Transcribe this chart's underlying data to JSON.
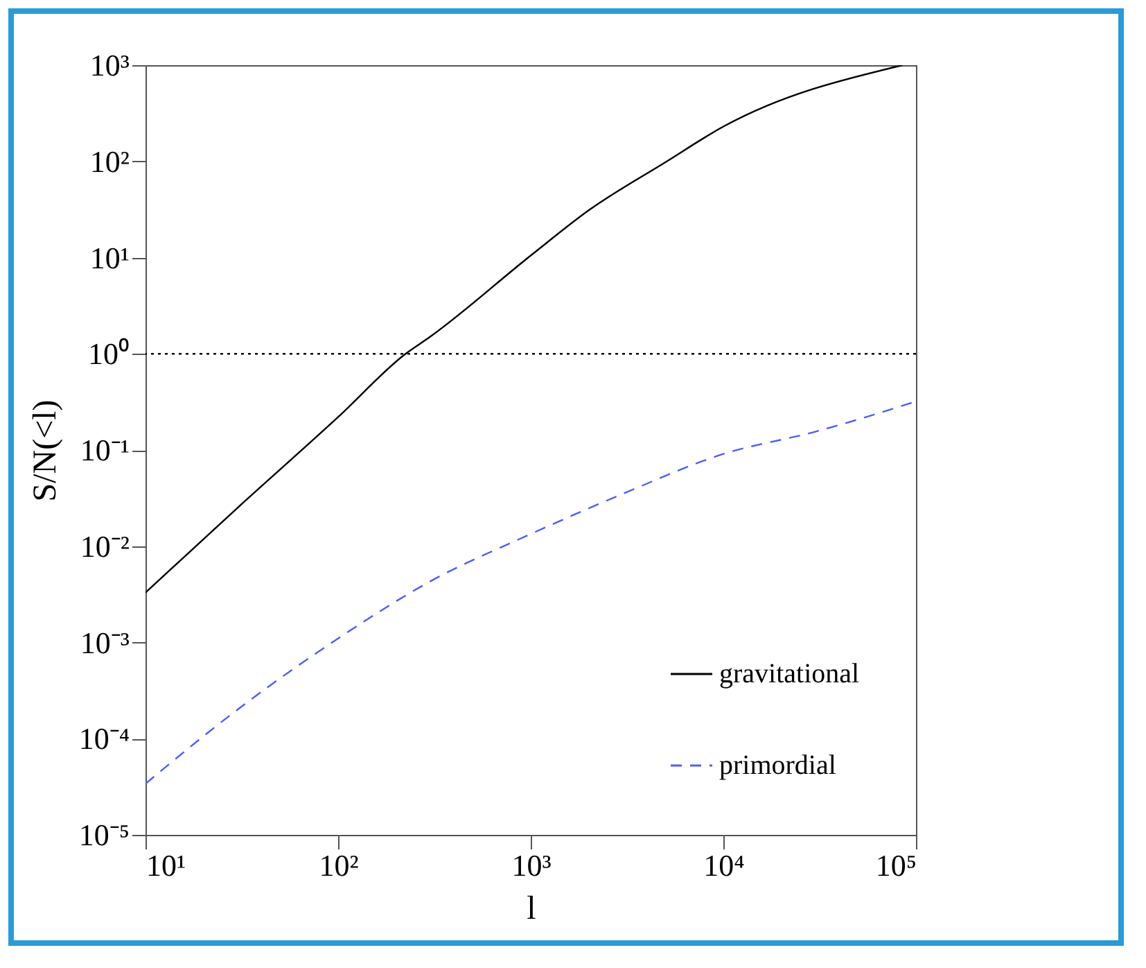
{
  "chart_data": {
    "type": "line",
    "xlabel": "l",
    "ylabel": "S/N(<l)",
    "log": "xy",
    "grid": false,
    "legend": "bottom right",
    "marker": "none",
    "xlim": [
      10,
      100000
    ],
    "ylim": [
      1e-05,
      1000
    ],
    "xticks": [
      {
        "value": 10,
        "label": "10¹"
      },
      {
        "value": 100,
        "label": "10²"
      },
      {
        "value": 1000,
        "label": "10³"
      },
      {
        "value": 10000,
        "label": "10⁴"
      },
      {
        "value": 100000,
        "label": "10⁵"
      }
    ],
    "yticks": [
      {
        "value": 1e-05,
        "label": "10⁻⁵"
      },
      {
        "value": 0.0001,
        "label": "10⁻⁴"
      },
      {
        "value": 0.001,
        "label": "10⁻³"
      },
      {
        "value": 0.01,
        "label": "10⁻²"
      },
      {
        "value": 0.1,
        "label": "10⁻¹"
      },
      {
        "value": 1,
        "label": "10⁰"
      },
      {
        "value": 10,
        "label": "10¹"
      },
      {
        "value": 100,
        "label": "10²"
      },
      {
        "value": 1000,
        "label": "10³"
      }
    ],
    "ref_lines": [
      {
        "axis": "y",
        "value": 1,
        "line_style": "dotted",
        "color": "#000000"
      }
    ],
    "series": [
      {
        "name": "gravitational",
        "color": "#000000",
        "line_style": "solid",
        "x": [
          10,
          30,
          100,
          224,
          300,
          1000,
          2000,
          5000,
          10000,
          85000
        ],
        "values": [
          0.0033,
          0.025,
          0.22,
          1,
          1.5,
          10.5,
          31,
          98,
          230,
          1000
        ]
      },
      {
        "name": "primordial",
        "color": "#4d5ef5",
        "line_style": "dashed",
        "x": [
          10,
          30,
          100,
          300,
          1000,
          3000,
          10000,
          30000,
          100000
        ],
        "values": [
          3.4e-05,
          0.0002,
          0.0011,
          0.0043,
          0.0134,
          0.035,
          0.091,
          0.155,
          0.32
        ]
      }
    ]
  }
}
